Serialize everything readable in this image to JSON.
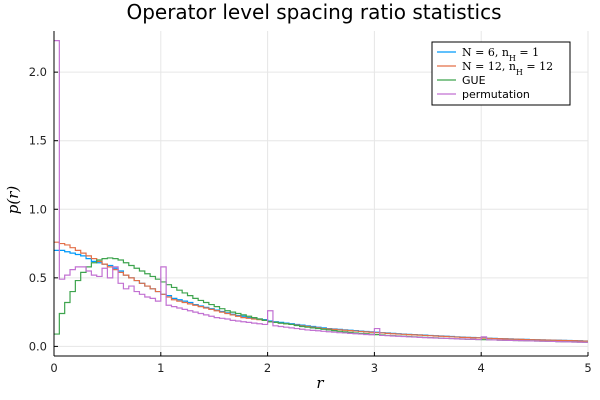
{
  "chart_data": {
    "type": "histogram",
    "title": "Operator level spacing ratio statistics",
    "xlabel": "r",
    "ylabel": "p(r)",
    "xlim": [
      0,
      5
    ],
    "ylim": [
      -0.07,
      2.3
    ],
    "xticks": [
      0,
      1,
      2,
      3,
      4,
      5
    ],
    "yticks": [
      0.0,
      0.5,
      1.0,
      1.5,
      2.0
    ],
    "xtick_labels": [
      "0",
      "1",
      "2",
      "3",
      "4",
      "5"
    ],
    "ytick_labels": [
      "0.0",
      "0.5",
      "1.0",
      "1.5",
      "2.0"
    ],
    "grid": true,
    "legend_position": "top-right",
    "bin_width": 0.05,
    "series": [
      {
        "name": "N = 6, n_H = 1",
        "color": "#009AFA",
        "x_start": 0,
        "values": [
          0.7,
          0.7,
          0.69,
          0.68,
          0.67,
          0.66,
          0.64,
          0.62,
          0.61,
          0.6,
          0.59,
          0.57,
          0.55,
          0.52,
          0.5,
          0.48,
          0.46,
          0.44,
          0.42,
          0.4,
          0.38,
          0.37,
          0.35,
          0.34,
          0.33,
          0.32,
          0.305,
          0.295,
          0.285,
          0.275,
          0.265,
          0.255,
          0.245,
          0.235,
          0.225,
          0.22,
          0.21,
          0.205,
          0.2,
          0.195,
          0.185,
          0.18,
          0.175,
          0.17,
          0.165,
          0.16,
          0.155,
          0.15,
          0.145,
          0.14,
          0.135,
          0.13,
          0.127,
          0.124,
          0.121,
          0.118,
          0.115,
          0.112,
          0.109,
          0.106,
          0.103,
          0.1,
          0.098,
          0.095,
          0.092,
          0.09,
          0.088,
          0.086,
          0.084,
          0.082,
          0.08,
          0.078,
          0.076,
          0.074,
          0.072,
          0.07,
          0.068,
          0.066,
          0.065,
          0.063,
          0.062,
          0.06,
          0.059,
          0.057,
          0.056,
          0.055,
          0.053,
          0.052,
          0.051,
          0.05,
          0.049,
          0.048,
          0.047,
          0.046,
          0.045,
          0.044,
          0.043,
          0.042,
          0.041,
          0.04
        ]
      },
      {
        "name": "N = 12, n_H = 12",
        "color": "#E36F47",
        "x_start": 0,
        "values": [
          0.76,
          0.75,
          0.74,
          0.72,
          0.7,
          0.68,
          0.66,
          0.64,
          0.62,
          0.6,
          0.58,
          0.56,
          0.54,
          0.52,
          0.5,
          0.48,
          0.46,
          0.44,
          0.42,
          0.4,
          0.38,
          0.36,
          0.34,
          0.33,
          0.32,
          0.31,
          0.3,
          0.29,
          0.28,
          0.27,
          0.26,
          0.25,
          0.24,
          0.23,
          0.22,
          0.21,
          0.205,
          0.2,
          0.195,
          0.19,
          0.18,
          0.175,
          0.17,
          0.165,
          0.16,
          0.155,
          0.15,
          0.145,
          0.14,
          0.135,
          0.13,
          0.127,
          0.124,
          0.121,
          0.118,
          0.115,
          0.112,
          0.109,
          0.106,
          0.103,
          0.1,
          0.098,
          0.095,
          0.092,
          0.09,
          0.088,
          0.086,
          0.084,
          0.082,
          0.08,
          0.078,
          0.076,
          0.074,
          0.072,
          0.07,
          0.068,
          0.066,
          0.065,
          0.063,
          0.062,
          0.06,
          0.059,
          0.057,
          0.056,
          0.055,
          0.053,
          0.052,
          0.051,
          0.05,
          0.049,
          0.048,
          0.047,
          0.046,
          0.045,
          0.044,
          0.043,
          0.042,
          0.041,
          0.04,
          0.039
        ]
      },
      {
        "name": "GUE",
        "color": "#3EA44E",
        "x_start": 0,
        "values": [
          0.09,
          0.24,
          0.32,
          0.4,
          0.48,
          0.54,
          0.58,
          0.61,
          0.63,
          0.64,
          0.645,
          0.64,
          0.63,
          0.61,
          0.59,
          0.57,
          0.55,
          0.53,
          0.51,
          0.49,
          0.47,
          0.45,
          0.43,
          0.41,
          0.39,
          0.37,
          0.35,
          0.335,
          0.32,
          0.305,
          0.29,
          0.275,
          0.26,
          0.25,
          0.24,
          0.23,
          0.22,
          0.21,
          0.2,
          0.19,
          0.18,
          0.175,
          0.17,
          0.165,
          0.16,
          0.152,
          0.145,
          0.14,
          0.135,
          0.13,
          0.125,
          0.12,
          0.115,
          0.11,
          0.106,
          0.102,
          0.098,
          0.095,
          0.092,
          0.089,
          0.086,
          0.083,
          0.08,
          0.078,
          0.076,
          0.074,
          0.072,
          0.07,
          0.068,
          0.066,
          0.064,
          0.062,
          0.06,
          0.058,
          0.057,
          0.055,
          0.054,
          0.052,
          0.051,
          0.05,
          0.049,
          0.048,
          0.047,
          0.046,
          0.045,
          0.044,
          0.043,
          0.042,
          0.041,
          0.04,
          0.039,
          0.038,
          0.037,
          0.036,
          0.035,
          0.034,
          0.033,
          0.032,
          0.031,
          0.03
        ]
      },
      {
        "name": "permutation",
        "color": "#C271D2",
        "x_start": 0,
        "values": [
          2.23,
          0.49,
          0.52,
          0.56,
          0.58,
          0.58,
          0.55,
          0.52,
          0.51,
          0.57,
          0.5,
          0.58,
          0.46,
          0.42,
          0.44,
          0.4,
          0.38,
          0.36,
          0.35,
          0.33,
          0.58,
          0.3,
          0.29,
          0.28,
          0.27,
          0.26,
          0.25,
          0.24,
          0.23,
          0.22,
          0.21,
          0.205,
          0.2,
          0.19,
          0.185,
          0.18,
          0.175,
          0.17,
          0.165,
          0.16,
          0.26,
          0.15,
          0.145,
          0.14,
          0.135,
          0.13,
          0.125,
          0.12,
          0.117,
          0.114,
          0.11,
          0.107,
          0.104,
          0.1,
          0.098,
          0.095,
          0.092,
          0.09,
          0.087,
          0.085,
          0.13,
          0.08,
          0.078,
          0.076,
          0.074,
          0.072,
          0.07,
          0.068,
          0.066,
          0.064,
          0.063,
          0.061,
          0.06,
          0.058,
          0.057,
          0.055,
          0.054,
          0.053,
          0.052,
          0.05,
          0.07,
          0.048,
          0.047,
          0.046,
          0.045,
          0.044,
          0.043,
          0.042,
          0.041,
          0.04,
          0.039,
          0.038,
          0.037,
          0.036,
          0.035,
          0.034,
          0.033,
          0.032,
          0.031,
          0.03
        ]
      }
    ]
  },
  "legend": {
    "entries": [
      {
        "label_parts": [
          "N = 6, n",
          "H",
          " = 1"
        ],
        "color": "#009AFA"
      },
      {
        "label_parts": [
          "N = 12, n",
          "H",
          " = 12"
        ],
        "color": "#E36F47"
      },
      {
        "label": "GUE",
        "color": "#3EA44E"
      },
      {
        "label": "permutation",
        "color": "#C271D2"
      }
    ]
  }
}
